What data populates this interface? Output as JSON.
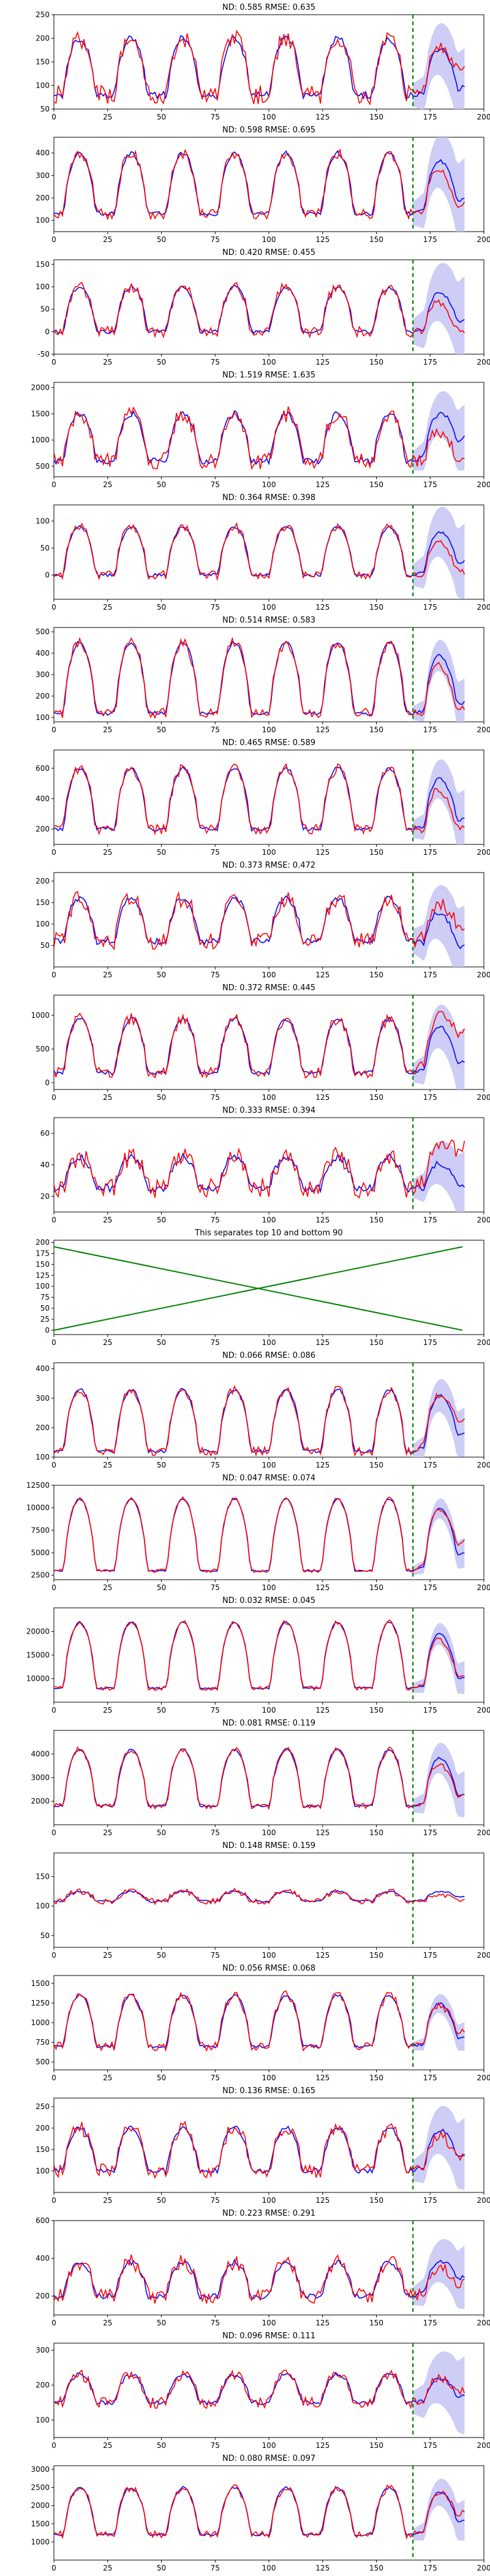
{
  "page": {
    "title": ""
  },
  "colors": {
    "truth": "#ff0000",
    "pred": "#0000ff",
    "band": "#c8c8f5",
    "split": "#008000",
    "divider": "#008000"
  },
  "chart_data": [
    {
      "type": "line",
      "title": "ND:  0.585 RMSE:  0.635",
      "xlim": [
        0,
        200
      ],
      "ylim": [
        50,
        250
      ],
      "xticks": [
        "0",
        "25",
        "50",
        "75",
        "100",
        "125",
        "150",
        "175",
        "200"
      ],
      "yticks": [
        "50",
        "100",
        "150",
        "200",
        "250"
      ],
      "pattern": {
        "lo": 80,
        "hi": 200,
        "noise": 25,
        "predEnd": 110,
        "truthEnd": 160,
        "bandWidth": 60
      },
      "split_x": 167,
      "show_band": true
    },
    {
      "type": "line",
      "title": "ND:  0.598 RMSE:  0.695",
      "xlim": [
        0,
        200
      ],
      "ylim": [
        50,
        470
      ],
      "xticks": [
        "0",
        "25",
        "50",
        "75",
        "100",
        "125",
        "150",
        "175",
        "200"
      ],
      "yticks": [
        "100",
        "200",
        "300",
        "400"
      ],
      "pattern": {
        "lo": 130,
        "hi": 400,
        "noise": 30,
        "predEnd": 260,
        "truthEnd": 180,
        "bandWidth": 130
      },
      "split_x": 167,
      "show_band": true
    },
    {
      "type": "line",
      "title": "ND:  0.420 RMSE:  0.455",
      "xlim": [
        0,
        200
      ],
      "ylim": [
        -50,
        160
      ],
      "xticks": [
        "0",
        "25",
        "50",
        "75",
        "100",
        "125",
        "150",
        "175",
        "200"
      ],
      "yticks": [
        "-50",
        "0",
        "50",
        "100",
        "150"
      ],
      "pattern": {
        "lo": 0,
        "hi": 100,
        "noise": 15,
        "predEnd": 50,
        "truthEnd": 0,
        "bandWidth": 70
      },
      "split_x": 167,
      "show_band": true
    },
    {
      "type": "line",
      "title": "ND:  1.519 RMSE:  1.635",
      "xlim": [
        0,
        200
      ],
      "ylim": [
        300,
        2100
      ],
      "xticks": [
        "0",
        "25",
        "50",
        "75",
        "100",
        "125",
        "150",
        "175",
        "200"
      ],
      "yticks": [
        "500",
        "1000",
        "1500",
        "2000"
      ],
      "pattern": {
        "lo": 600,
        "hi": 1500,
        "noise": 200,
        "predEnd": 1500,
        "truthEnd": 600,
        "bandWidth": 450
      },
      "split_x": 167,
      "show_band": true
    },
    {
      "type": "line",
      "title": "ND:  0.364 RMSE:  0.398",
      "xlim": [
        0,
        200
      ],
      "ylim": [
        -45,
        130
      ],
      "xticks": [
        "0",
        "25",
        "50",
        "75",
        "100",
        "125",
        "150",
        "175",
        "200"
      ],
      "yticks": [
        "0",
        "50",
        "100"
      ],
      "pattern": {
        "lo": 0,
        "hi": 90,
        "noise": 10,
        "predEnd": 50,
        "truthEnd": 10,
        "bandWidth": 50
      },
      "split_x": 167,
      "show_band": true
    },
    {
      "type": "line",
      "title": "ND:  0.514 RMSE:  0.583",
      "xlim": [
        0,
        200
      ],
      "ylim": [
        80,
        520
      ],
      "xticks": [
        "0",
        "25",
        "50",
        "75",
        "100",
        "125",
        "150",
        "175",
        "200"
      ],
      "yticks": [
        "100",
        "200",
        "300",
        "400",
        "500"
      ],
      "pattern": {
        "lo": 120,
        "hi": 450,
        "noise": 30,
        "predEnd": 220,
        "truthEnd": 150,
        "bandWidth": 80
      },
      "split_x": 167,
      "show_band": true
    },
    {
      "type": "line",
      "title": "ND:  0.465 RMSE:  0.589",
      "xlim": [
        0,
        200
      ],
      "ylim": [
        100,
        720
      ],
      "xticks": [
        "0",
        "25",
        "50",
        "75",
        "100",
        "125",
        "150",
        "175",
        "200"
      ],
      "yticks": [
        "200",
        "400",
        "600"
      ],
      "pattern": {
        "lo": 200,
        "hi": 600,
        "noise": 40,
        "predEnd": 330,
        "truthEnd": 200,
        "bandWidth": 140
      },
      "split_x": 167,
      "show_band": true
    },
    {
      "type": "line",
      "title": "ND:  0.373 RMSE:  0.472",
      "xlim": [
        0,
        200
      ],
      "ylim": [
        0,
        220
      ],
      "xticks": [
        "0",
        "25",
        "50",
        "75",
        "100",
        "125",
        "150",
        "175",
        "200"
      ],
      "yticks": [
        "50",
        "100",
        "150",
        "200"
      ],
      "pattern": {
        "lo": 60,
        "hi": 160,
        "noise": 25,
        "predEnd": 30,
        "truthEnd": 120,
        "bandWidth": 70
      },
      "split_x": 167,
      "show_band": true
    },
    {
      "type": "line",
      "title": "ND:  0.372 RMSE:  0.445",
      "xlim": [
        0,
        200
      ],
      "ylim": [
        -100,
        1300
      ],
      "xticks": [
        "0",
        "25",
        "50",
        "75",
        "100",
        "125",
        "150",
        "175",
        "200"
      ],
      "yticks": [
        "0",
        "500",
        "1000"
      ],
      "pattern": {
        "lo": 150,
        "hi": 950,
        "noise": 100,
        "predEnd": 500,
        "truthEnd": 1100,
        "bandWidth": 350
      },
      "split_x": 167,
      "show_band": true
    },
    {
      "type": "line",
      "title": "ND:  0.333 RMSE:  0.394",
      "xlim": [
        0,
        200
      ],
      "ylim": [
        10,
        70
      ],
      "xticks": [
        "0",
        "25",
        "50",
        "75",
        "100",
        "125",
        "150",
        "175",
        "200"
      ],
      "yticks": [
        "20",
        "40",
        "60"
      ],
      "pattern": {
        "lo": 25,
        "hi": 45,
        "noise": 8,
        "predEnd": 30,
        "truthEnd": 65,
        "bandWidth": 15
      },
      "split_x": 167,
      "show_band": true
    },
    {
      "type": "line",
      "title": "This separates top 10 and bottom 90",
      "xlim": [
        0,
        200
      ],
      "ylim": [
        -10,
        205
      ],
      "xticks": [
        "0",
        "25",
        "50",
        "75",
        "100",
        "125",
        "150",
        "175",
        "200"
      ],
      "yticks": [
        "0",
        "25",
        "50",
        "75",
        "100",
        "125",
        "150",
        "175",
        "200"
      ],
      "series": [
        {
          "x": [
            0,
            190
          ],
          "y": [
            190,
            0
          ]
        },
        {
          "x": [
            0,
            190
          ],
          "y": [
            0,
            190
          ]
        }
      ]
    },
    {
      "type": "line",
      "title": "ND:  0.066 RMSE:  0.086",
      "xlim": [
        0,
        200
      ],
      "ylim": [
        100,
        420
      ],
      "xticks": [
        "0",
        "25",
        "50",
        "75",
        "100",
        "125",
        "150",
        "175",
        "200"
      ],
      "yticks": [
        "100",
        "200",
        "300",
        "400"
      ],
      "pattern": {
        "lo": 120,
        "hi": 330,
        "noise": 18,
        "predEnd": 250,
        "truthEnd": 280,
        "bandWidth": 60
      },
      "split_x": 167,
      "show_band": true
    },
    {
      "type": "line",
      "title": "ND:  0.047 RMSE:  0.074",
      "xlim": [
        0,
        200
      ],
      "ylim": [
        2000,
        12500
      ],
      "xticks": [
        "0",
        "25",
        "50",
        "75",
        "100",
        "125",
        "150",
        "175",
        "200"
      ],
      "yticks": [
        "2500",
        "5000",
        "7500",
        "10000",
        "12500"
      ],
      "pattern": {
        "lo": 3000,
        "hi": 11000,
        "noise": 250,
        "predEnd": 7000,
        "truthEnd": 7800,
        "bandWidth": 1200
      },
      "split_x": 167,
      "show_band": true
    },
    {
      "type": "line",
      "title": "ND:  0.032 RMSE:  0.045",
      "xlim": [
        0,
        200
      ],
      "ylim": [
        5000,
        25000
      ],
      "xticks": [
        "0",
        "25",
        "50",
        "75",
        "100",
        "125",
        "150",
        "175",
        "200"
      ],
      "yticks": [
        "10000",
        "15000",
        "20000"
      ],
      "pattern": {
        "lo": 8000,
        "hi": 22000,
        "noise": 600,
        "predEnd": 12500,
        "truthEnd": 12000,
        "bandWidth": 2500
      },
      "split_x": 167,
      "show_band": true
    },
    {
      "type": "line",
      "title": "ND:  0.081 RMSE:  0.119",
      "xlim": [
        0,
        200
      ],
      "ylim": [
        1000,
        5000
      ],
      "xticks": [
        "0",
        "25",
        "50",
        "75",
        "100",
        "125",
        "150",
        "175",
        "200"
      ],
      "yticks": [
        "2000",
        "3000",
        "4000"
      ],
      "pattern": {
        "lo": 1800,
        "hi": 4200,
        "noise": 150,
        "predEnd": 2800,
        "truthEnd": 2500,
        "bandWidth": 700
      },
      "split_x": 167,
      "show_band": true
    },
    {
      "type": "line",
      "title": "ND:  0.148 RMSE:  0.159",
      "xlim": [
        0,
        200
      ],
      "ylim": [
        30,
        190
      ],
      "xticks": [
        "0",
        "25",
        "50",
        "75",
        "100",
        "125",
        "150",
        "175",
        "200"
      ],
      "yticks": [
        "50",
        "100",
        "150"
      ],
      "pattern": {
        "lo": 108,
        "hi": 125,
        "noise": 6,
        "predEnd": 125,
        "truthEnd": 110,
        "bandWidth": 25
      },
      "split_x": 167,
      "show_band": false
    },
    {
      "type": "line",
      "title": "ND:  0.056 RMSE:  0.068",
      "xlim": [
        0,
        200
      ],
      "ylim": [
        400,
        1600
      ],
      "xticks": [
        "0",
        "25",
        "50",
        "75",
        "100",
        "125",
        "150",
        "175",
        "200"
      ],
      "yticks": [
        "500",
        "750",
        "1000",
        "1250",
        "1500"
      ],
      "pattern": {
        "lo": 700,
        "hi": 1350,
        "noise": 70,
        "predEnd": 950,
        "truthEnd": 1000,
        "bandWidth": 130
      },
      "split_x": 167,
      "show_band": true
    },
    {
      "type": "line",
      "title": "ND:  0.136 RMSE:  0.165",
      "xlim": [
        0,
        200
      ],
      "ylim": [
        50,
        270
      ],
      "xticks": [
        "0",
        "25",
        "50",
        "75",
        "100",
        "125",
        "150",
        "175",
        "200"
      ],
      "yticks": [
        "100",
        "150",
        "200",
        "250"
      ],
      "pattern": {
        "lo": 100,
        "hi": 200,
        "noise": 20,
        "predEnd": 180,
        "truthEnd": 150,
        "bandWidth": 60
      },
      "split_x": 167,
      "show_band": true
    },
    {
      "type": "line",
      "title": "ND:  0.223 RMSE:  0.291",
      "xlim": [
        0,
        200
      ],
      "ylim": [
        100,
        600
      ],
      "xticks": [
        "0",
        "25",
        "50",
        "75",
        "100",
        "125",
        "150",
        "175",
        "200"
      ],
      "yticks": [
        "200",
        "400",
        "600"
      ],
      "pattern": {
        "lo": 200,
        "hi": 380,
        "noise": 50,
        "predEnd": 400,
        "truthEnd": 300,
        "bandWidth": 120
      },
      "split_x": 167,
      "show_band": true
    },
    {
      "type": "line",
      "title": "ND:  0.096 RMSE:  0.111",
      "xlim": [
        0,
        200
      ],
      "ylim": [
        50,
        320
      ],
      "xticks": [
        "0",
        "25",
        "50",
        "75",
        "100",
        "125",
        "150",
        "175",
        "200"
      ],
      "yticks": [
        "100",
        "200",
        "300"
      ],
      "pattern": {
        "lo": 150,
        "hi": 230,
        "noise": 20,
        "predEnd": 190,
        "truthEnd": 200,
        "bandWidth": 80
      },
      "split_x": 167,
      "show_band": true
    },
    {
      "type": "line",
      "title": "ND:  0.080 RMSE:  0.097",
      "xlim": [
        0,
        200
      ],
      "ylim": [
        500,
        3100
      ],
      "xticks": [
        "0",
        "25",
        "50",
        "75",
        "100",
        "125",
        "150",
        "175",
        "200"
      ],
      "yticks": [
        "1000",
        "1500",
        "2000",
        "2500",
        "3000"
      ],
      "pattern": {
        "lo": 1200,
        "hi": 2500,
        "noise": 120,
        "predEnd": 2000,
        "truthEnd": 2100,
        "bandWidth": 400
      },
      "split_x": 167,
      "show_band": true
    }
  ]
}
